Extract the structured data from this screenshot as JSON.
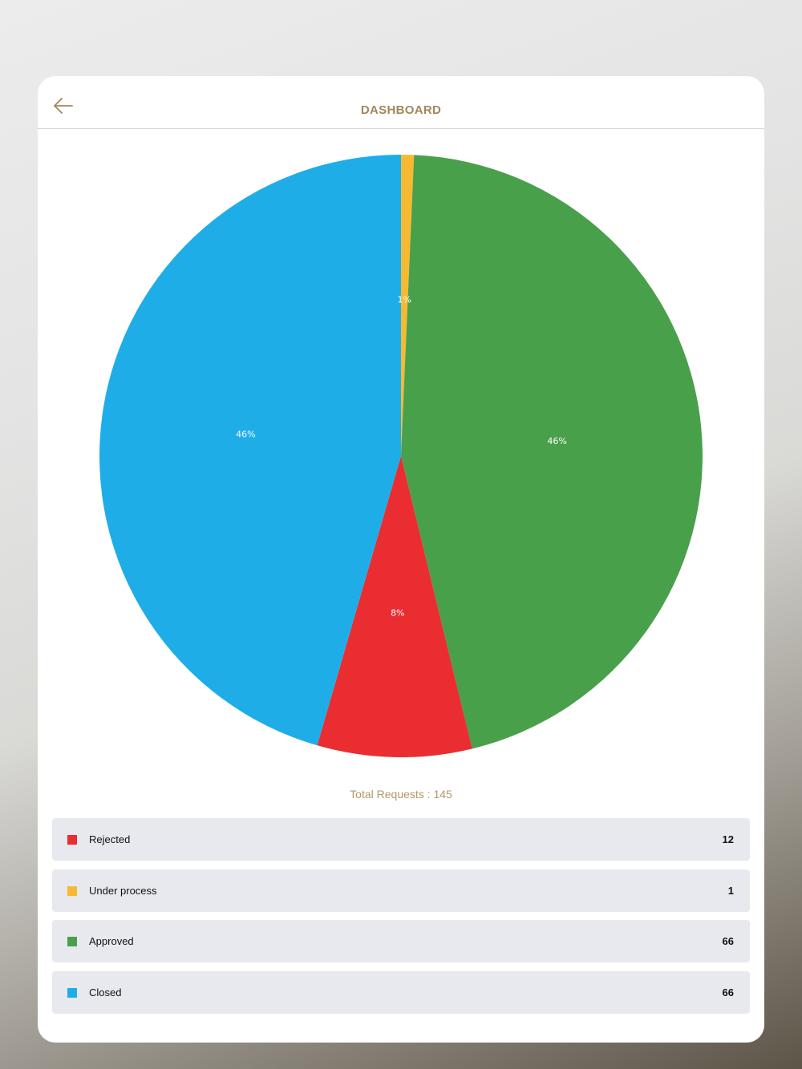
{
  "header": {
    "title": "DASHBOARD",
    "back_icon": "arrow-left-icon"
  },
  "summary": {
    "total_label": "Total Requests : 145"
  },
  "legend": [
    {
      "label": "Rejected",
      "value": "12",
      "color": "#e92d31"
    },
    {
      "label": "Under process",
      "value": "1",
      "color": "#f8b932"
    },
    {
      "label": "Approved",
      "value": "66",
      "color": "#49a04b"
    },
    {
      "label": "Closed",
      "value": "66",
      "color": "#1fade8"
    }
  ],
  "chart_data": {
    "type": "pie",
    "title": "",
    "slices": [
      {
        "name": "Under process",
        "value": 1,
        "label": "1%",
        "color": "#f8b932"
      },
      {
        "name": "Approved",
        "value": 66,
        "label": "46%",
        "color": "#49a04b"
      },
      {
        "name": "Rejected",
        "value": 12,
        "label": "8%",
        "color": "#e92d31"
      },
      {
        "name": "Closed",
        "value": 66,
        "label": "46%",
        "color": "#1fade8"
      }
    ],
    "start_angle_deg": 0,
    "direction": "clockwise"
  }
}
